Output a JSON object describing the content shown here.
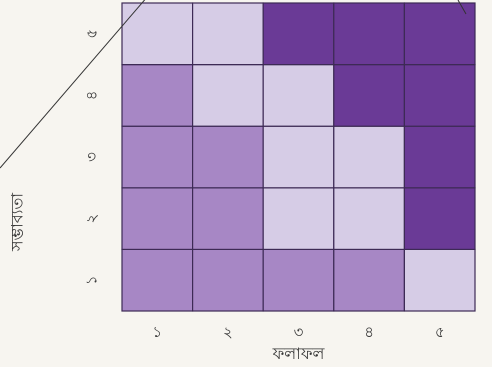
{
  "colors": {
    "low": "#d6cce6",
    "medium": "#a787c5",
    "high": "#6a3a96",
    "cell_border": "#3d2a55",
    "background": "#f7f5f0",
    "diagonal_line": "#333333"
  },
  "chart_data": {
    "type": "heatmap",
    "title": "",
    "xlabel": "ফলাফল",
    "ylabel": "সম্ভাব্যতা",
    "x_categories": [
      "১",
      "২",
      "৩",
      "৪",
      "৫"
    ],
    "y_categories": [
      "১",
      "২",
      "৩",
      "৪",
      "৫"
    ],
    "levels": [
      "low",
      "medium",
      "high"
    ],
    "cells": [
      [
        "medium",
        "medium",
        "medium",
        "medium",
        "low"
      ],
      [
        "medium",
        "medium",
        "low",
        "low",
        "high"
      ],
      [
        "medium",
        "medium",
        "low",
        "low",
        "high"
      ],
      [
        "medium",
        "low",
        "low",
        "high",
        "high"
      ],
      [
        "low",
        "low",
        "high",
        "high",
        "high"
      ]
    ],
    "grid": true,
    "legend": "none"
  }
}
